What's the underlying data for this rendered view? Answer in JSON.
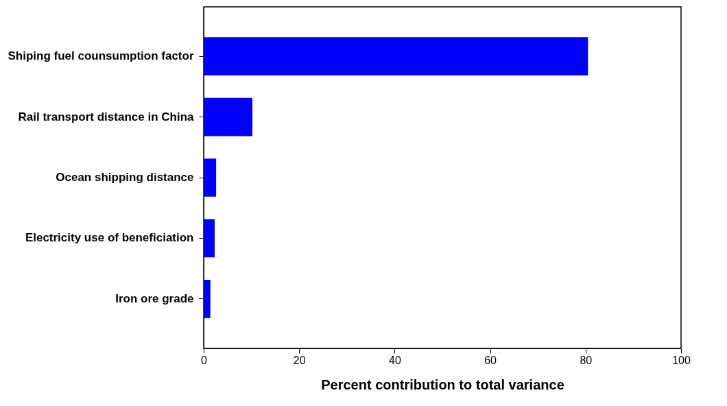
{
  "chart_data": {
    "type": "bar",
    "orientation": "horizontal",
    "xlabel": "Percent contribution to total variance",
    "categories": [
      "Shiping fuel counsumption factor ",
      "Rail transport distance in China",
      "Ocean shipping distance ",
      "Electricity use of beneficiation",
      "Iron ore grade"
    ],
    "values": [
      80.5,
      10.2,
      2.6,
      2.3,
      1.4
    ],
    "color": "#0000ff",
    "xlim": [
      0,
      100
    ],
    "xticks": [
      0,
      20,
      40,
      60,
      80,
      100
    ],
    "grid": false
  }
}
